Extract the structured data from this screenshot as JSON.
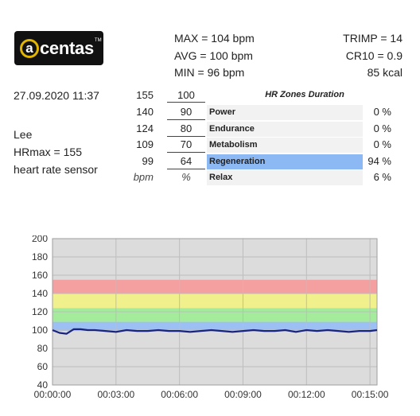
{
  "brand": {
    "logo_text": "centas",
    "logo_letter": "a",
    "trademark": "TM"
  },
  "summary": {
    "max": "MAX = 104 bpm",
    "avg": "AVG = 100 bpm",
    "min": "MIN = 96 bpm",
    "trimp": "TRIMP = 14",
    "cr10": "CR10 = 0.9",
    "kcal": "85 kcal"
  },
  "session": {
    "datetime": "27.09.2020 11:37",
    "user": "Lee",
    "hrmax": "HRmax = 155",
    "sensor": "heart rate sensor"
  },
  "zones": {
    "header": "HR Zones Duration",
    "top_bpm": "155",
    "top_pct": "100",
    "rows": [
      {
        "bpm": "140",
        "pct": "90",
        "name": "Power",
        "duration": "0 %",
        "fraction": 0.0,
        "active": false
      },
      {
        "bpm": "124",
        "pct": "80",
        "name": "Endurance",
        "duration": "0 %",
        "fraction": 0.0,
        "active": false
      },
      {
        "bpm": "109",
        "pct": "70",
        "name": "Metabolism",
        "duration": "0 %",
        "fraction": 0.0,
        "active": false
      },
      {
        "bpm": "99",
        "pct": "64",
        "name": "Regeneration",
        "duration": "94 %",
        "fraction": 0.94,
        "active": true
      },
      {
        "bpm": "bpm",
        "pct": "%",
        "name": "Relax",
        "duration": "6 %",
        "fraction": 0.06,
        "active": false
      }
    ]
  },
  "colors": {
    "power": "#f4a0a0",
    "endurance": "#f0f08c",
    "metabolism": "#a4ec9c",
    "regeneration": "#9cc0f4",
    "plot_bg": "#dcdcdc",
    "line": "#1a237e",
    "active_bar": "#8cb8f4"
  },
  "chart_data": {
    "type": "line",
    "ylim": [
      40,
      200
    ],
    "yticks": [
      "40",
      "60",
      "80",
      "100",
      "120",
      "140",
      "160",
      "180",
      "200"
    ],
    "xlim": [
      "00:00:00",
      "00:15:20"
    ],
    "xticks": [
      "00:00:00",
      "00:03:00",
      "00:06:00",
      "00:09:00",
      "00:12:00",
      "00:15:00"
    ],
    "zones": [
      {
        "name": "Power",
        "from": 140,
        "to": 155
      },
      {
        "name": "Endurance",
        "from": 124,
        "to": 140
      },
      {
        "name": "Metabolism",
        "from": 109,
        "to": 124
      },
      {
        "name": "Regeneration",
        "from": 99,
        "to": 109
      }
    ],
    "grid": true,
    "series": [
      {
        "x": [
          "00:00:00",
          "00:00:20",
          "00:00:40",
          "00:01:00",
          "00:01:20",
          "00:01:40",
          "00:02:00",
          "00:02:30",
          "00:03:00",
          "00:03:30",
          "00:04:00",
          "00:04:30",
          "00:05:00",
          "00:05:30",
          "00:06:00",
          "00:06:30",
          "00:07:00",
          "00:07:30",
          "00:08:00",
          "00:08:30",
          "00:09:00",
          "00:09:30",
          "00:10:00",
          "00:10:30",
          "00:11:00",
          "00:11:30",
          "00:12:00",
          "00:12:30",
          "00:13:00",
          "00:13:30",
          "00:14:00",
          "00:14:30",
          "00:15:00",
          "00:15:20"
        ],
        "y": [
          100,
          97,
          96,
          101,
          101,
          100,
          100,
          99,
          98,
          100,
          99,
          99,
          100,
          99,
          99,
          98,
          99,
          100,
          99,
          98,
          99,
          100,
          99,
          99,
          100,
          98,
          100,
          99,
          100,
          99,
          98,
          99,
          99,
          100
        ]
      }
    ]
  }
}
